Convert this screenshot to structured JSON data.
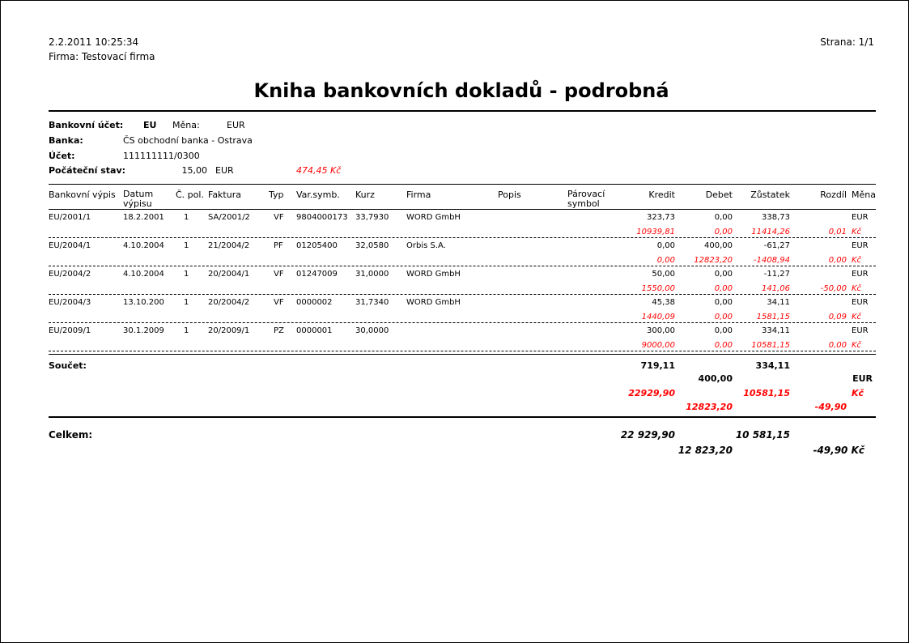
{
  "header": {
    "datetime": "2.2.2011  10:25:34",
    "company": "Firma: Testovací firma",
    "page": "Strana: 1/1",
    "title": "Kniha bankovních dokladů - podrobná"
  },
  "account": {
    "bank_account_label": "Bankovní účet:",
    "bank_account": "EU",
    "currency_label": "Měna:",
    "currency": "EUR",
    "bank_label": "Banka:",
    "bank": "ČS obchodní banka - Ostrava",
    "number_label": "Účet:",
    "number": "111111111/0300",
    "initial_label": "Počáteční stav:",
    "initial": "15,00",
    "initial_currency": "EUR",
    "initial_czk": "474,45  Kč"
  },
  "columns": {
    "vypis": "Bankovní výpis",
    "datum": "Datum výpisu",
    "pol": "Č. pol.",
    "faktura": "Faktura",
    "typ": "Typ",
    "var": "Var.symb.",
    "kurz": "Kurz",
    "firma": "Firma",
    "popis": "Popis",
    "parovaci": "Párovací symbol",
    "kredit": "Kredit",
    "debet": "Debet",
    "zustatek": "Zůstatek",
    "rozdil": "Rozdíl",
    "mena": "Měna"
  },
  "rows": [
    {
      "vypis": "EU/2001/1",
      "datum": "18.2.2001",
      "pol": "1",
      "faktura": "SA/2001/2",
      "typ": "VF",
      "var": "9804000173",
      "kurz": "33,7930",
      "firma": "WORD GmbH",
      "kredit": "323,73",
      "debet": "0,00",
      "zustatek": "338,73",
      "mena": "EUR",
      "kredit_czk": "10939,81",
      "debet_czk": "0,00",
      "zustatek_czk": "11414,26",
      "rozdil_czk": "0,01",
      "mena_czk": "Kč"
    },
    {
      "vypis": "EU/2004/1",
      "datum": "4.10.2004",
      "pol": "1",
      "faktura": "21/2004/2",
      "typ": "PF",
      "var": "01205400",
      "kurz": "32,0580",
      "firma": "Orbis S.A.",
      "kredit": "0,00",
      "debet": "400,00",
      "zustatek": "-61,27",
      "mena": "EUR",
      "kredit_czk": "0,00",
      "debet_czk": "12823,20",
      "zustatek_czk": "-1408,94",
      "rozdil_czk": "0,00",
      "mena_czk": "Kč"
    },
    {
      "vypis": "EU/2004/2",
      "datum": "4.10.2004",
      "pol": "1",
      "faktura": "20/2004/1",
      "typ": "VF",
      "var": "01247009",
      "kurz": "31,0000",
      "firma": "WORD GmbH",
      "kredit": "50,00",
      "debet": "0,00",
      "zustatek": "-11,27",
      "mena": "EUR",
      "kredit_czk": "1550,00",
      "debet_czk": "0,00",
      "zustatek_czk": "141,06",
      "rozdil_czk": "-50,00",
      "mena_czk": "Kč"
    },
    {
      "vypis": "EU/2004/3",
      "datum": "13.10.200",
      "pol": "1",
      "faktura": "20/2004/2",
      "typ": "VF",
      "var": "0000002",
      "kurz": "31,7340",
      "firma": "WORD GmbH",
      "kredit": "45,38",
      "debet": "0,00",
      "zustatek": "34,11",
      "mena": "EUR",
      "kredit_czk": "1440,09",
      "debet_czk": "0,00",
      "zustatek_czk": "1581,15",
      "rozdil_czk": "0,09",
      "mena_czk": "Kč"
    },
    {
      "vypis": "EU/2009/1",
      "datum": "30.1.2009",
      "pol": "1",
      "faktura": "20/2009/1",
      "typ": "PZ",
      "var": "0000001",
      "kurz": "30,0000",
      "firma": "",
      "kredit": "300,00",
      "debet": "0,00",
      "zustatek": "334,11",
      "mena": "EUR",
      "kredit_czk": "9000,00",
      "debet_czk": "0,00",
      "zustatek_czk": "10581,15",
      "rozdil_czk": "0,00",
      "mena_czk": "Kč"
    }
  ],
  "sum": {
    "label": "Součet:",
    "kredit": "719,11",
    "zustatek": "334,11",
    "debet": "400,00",
    "mena": "EUR",
    "kredit_czk": "22929,90",
    "zustatek_czk": "10581,15",
    "mena_czk": "Kč",
    "debet_czk": "12823,20",
    "rozdil_czk": "-49,90"
  },
  "total": {
    "label": "Celkem:",
    "kredit": "22 929,90",
    "zustatek": "10 581,15",
    "debet": "12 823,20",
    "rozdil": "-49,90 Kč"
  },
  "colors": {
    "czk": "#ff0000"
  }
}
